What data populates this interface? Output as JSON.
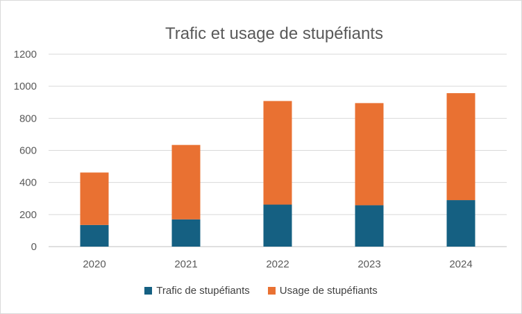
{
  "chart_data": {
    "type": "bar",
    "stacked": true,
    "title": "Trafic et usage de stupéfiants",
    "categories": [
      "2020",
      "2021",
      "2022",
      "2023",
      "2024"
    ],
    "series": [
      {
        "name": "Trafic de stupéfiants",
        "values": [
          135,
          170,
          262,
          258,
          290
        ],
        "color": "#156082"
      },
      {
        "name": "Usage de stupéfiants",
        "values": [
          327,
          464,
          646,
          637,
          667
        ],
        "color": "#E97132"
      }
    ],
    "ylim": [
      0,
      1200
    ],
    "yticks": [
      0,
      200,
      400,
      600,
      800,
      1000,
      1200
    ],
    "grid": true,
    "legend_position": "bottom"
  }
}
